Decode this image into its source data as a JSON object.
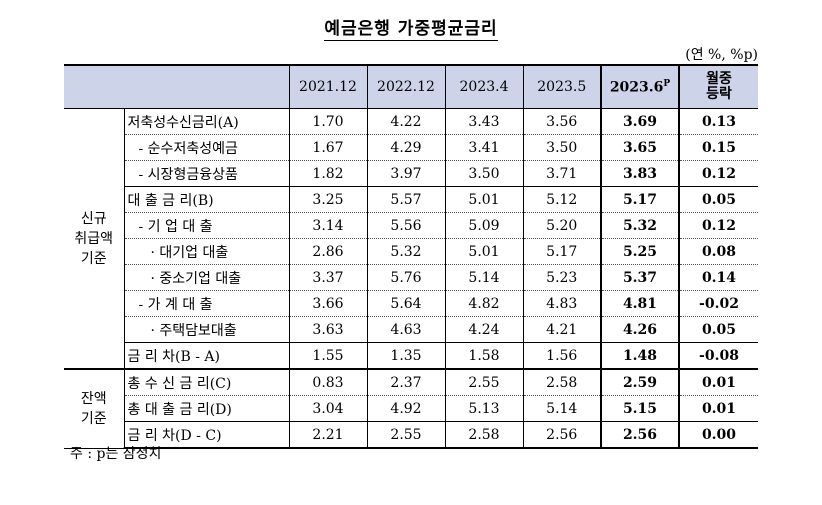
{
  "title": "예금은행 가중평균금리",
  "unit": "(연 %, %p)",
  "headers": [
    "2021.12",
    "2022.12",
    "2023.4",
    "2023.5"
  ],
  "current_header": "2023.6",
  "current_sup": "P",
  "change_header": [
    "월중",
    "등락"
  ],
  "groups": {
    "new": "신규\n취급액\n기준",
    "balance": "잔액\n기준"
  },
  "rows": [
    {
      "label": "저축성수신금리(A)",
      "v": [
        "1.70",
        "4.22",
        "3.43",
        "3.56"
      ],
      "cur": "3.69",
      "chg": "0.13"
    },
    {
      "label": "- 순수저축성예금",
      "v": [
        "1.67",
        "4.29",
        "3.41",
        "3.50"
      ],
      "cur": "3.65",
      "chg": "0.15"
    },
    {
      "label": "- 시장형금융상품",
      "v": [
        "1.82",
        "3.97",
        "3.50",
        "3.71"
      ],
      "cur": "3.83",
      "chg": "0.12"
    },
    {
      "label": "대 출 금 리(B)",
      "v": [
        "3.25",
        "5.57",
        "5.01",
        "5.12"
      ],
      "cur": "5.17",
      "chg": "0.05"
    },
    {
      "label": "- 기 업 대 출",
      "v": [
        "3.14",
        "5.56",
        "5.09",
        "5.20"
      ],
      "cur": "5.32",
      "chg": "0.12"
    },
    {
      "label": "· 대기업 대출",
      "v": [
        "2.86",
        "5.32",
        "5.01",
        "5.17"
      ],
      "cur": "5.25",
      "chg": "0.08"
    },
    {
      "label": "· 중소기업 대출",
      "v": [
        "3.37",
        "5.76",
        "5.14",
        "5.23"
      ],
      "cur": "5.37",
      "chg": "0.14"
    },
    {
      "label": "- 가 계 대 출",
      "v": [
        "3.66",
        "5.64",
        "4.82",
        "4.83"
      ],
      "cur": "4.81",
      "chg": "-0.02"
    },
    {
      "label": "· 주택담보대출",
      "v": [
        "3.63",
        "4.63",
        "4.24",
        "4.21"
      ],
      "cur": "4.26",
      "chg": "0.05"
    },
    {
      "label": "금 리 차(B - A)",
      "v": [
        "1.55",
        "1.35",
        "1.58",
        "1.56"
      ],
      "cur": "1.48",
      "chg": "-0.08"
    },
    {
      "label": "총 수 신 금 리(C)",
      "v": [
        "0.83",
        "2.37",
        "2.55",
        "2.58"
      ],
      "cur": "2.59",
      "chg": "0.01"
    },
    {
      "label": "총 대 출 금 리(D)",
      "v": [
        "3.04",
        "4.92",
        "5.13",
        "5.14"
      ],
      "cur": "5.15",
      "chg": "0.01"
    },
    {
      "label": "금 리 차(D - C)",
      "v": [
        "2.21",
        "2.55",
        "2.58",
        "2.56"
      ],
      "cur": "2.56",
      "chg": "0.00"
    }
  ],
  "note": "주 : p는 잠정치"
}
